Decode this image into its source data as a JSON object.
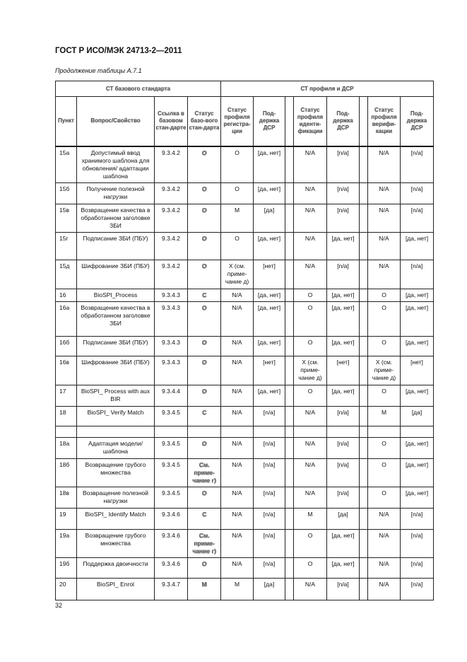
{
  "document": {
    "title": "ГОСТ Р ИСО/МЭК 24713-2—2011",
    "caption": "Продолжение таблицы А.7.1",
    "page_number": "32"
  },
  "table": {
    "group_headers": [
      "СТ базового стандарта",
      "СТ профиля и ДСР"
    ],
    "headers": [
      "Пункт",
      "Вопрос/Свойство",
      "Ссылка в базовом стан-дарте",
      "Статус базо-вого стан-дарта",
      "Статус профиля регистра-ции",
      "Под-держка ДСР",
      "Статус профиля иденти-фикации",
      "Под-держка ДСР",
      "Статус профиля верифи-кации",
      "Под-держка ДСР"
    ],
    "rows": [
      [
        "15а",
        "Допустимый ввод хранимого шаблона для обновления/ адаптации шаблона",
        "9.3.4.2",
        "О",
        "О",
        "[да, нет]",
        "N/A",
        "[n/a]",
        "N/A",
        "[n/a]"
      ],
      [
        "15б",
        "Получение полезной нагрузки",
        "9.3.4.2",
        "О",
        "О",
        "[да, нет]",
        "N/A",
        "[n/a]",
        "N/A",
        "[n/a]"
      ],
      [
        "15в",
        "Возвращение качества в обработанном заголовке ЗБИ",
        "9.3.4.2",
        "О",
        "М",
        "[да]",
        "N/A",
        "[n/a]",
        "N/A",
        "[n/a]"
      ],
      [
        "15г",
        "Подписание ЗБИ (ПБУ)",
        "9.3.4.2",
        "О",
        "О",
        "[да, нет]",
        "N/A",
        "[да, нет]",
        "N/A",
        "[да, нет]"
      ],
      [
        "15д",
        "Шифрование ЗБИ (ПБУ)",
        "9.3.4.2",
        "О",
        "X (см. приме-чание д)",
        "[нет]",
        "N/A",
        "[n/a]",
        "N/A",
        "[n/a]"
      ],
      [
        "16",
        "BioSPI_Process",
        "9.3.4.3",
        "С",
        "N/A",
        "[да, нет]",
        "О",
        "[да, нет]",
        "О",
        "[да, нет]"
      ],
      [
        "16а",
        "Возвращение качества в обработанном заголовке ЗБИ",
        "9.3.4.3",
        "О",
        "N/A",
        "[да, нет]",
        "О",
        "[да, нет]",
        "О",
        "[да, нет]"
      ],
      [
        "16б",
        "Подписание ЗБИ (ПБУ)",
        "9.3.4.3",
        "О",
        "N/A",
        "[да, нет]",
        "О",
        "[да, нет]",
        "О",
        "[да, нет]"
      ],
      [
        "16в",
        "Шифрование ЗБИ (ПБУ)",
        "9.3.4.3",
        "О",
        "N/A",
        "[нет]",
        "X (см. приме-чание д)",
        "[нет]",
        "X (см. приме-чание д)",
        "[нет]"
      ],
      [
        "17",
        "BioSPI_ Process with aux BIR",
        "9.3.4.4",
        "О",
        "N/A",
        "[да, нет]",
        "О",
        "[да, нет]",
        "О",
        "[да, нет]"
      ],
      [
        "18",
        "BioSPI_ Verify Match",
        "9.3.4.5",
        "С",
        "N/A",
        "[n/a]",
        "N/A",
        "[n/a]",
        "М",
        "[да]"
      ],
      [
        "",
        "",
        "",
        "",
        "",
        "",
        "",
        "",
        "",
        ""
      ],
      [
        "18а",
        "Адаптация модели/шаблона",
        "9.3.4.5",
        "О",
        "N/A",
        "[n/a]",
        "N/A",
        "[n/a]",
        "О",
        "[да, нет]"
      ],
      [
        "18б",
        "Возвращение грубого множества",
        "9.3.4.5",
        "См. приме-чание г)",
        "N/A",
        "[n/a]",
        "N/A",
        "[n/a]",
        "О",
        "[да, нет]"
      ],
      [
        "18в",
        "Возвращение полезной нагрузки",
        "9.3.4.5",
        "О",
        "N/A",
        "[n/a]",
        "N/A",
        "[n/a]",
        "О",
        "[да, нет]"
      ],
      [
        "19",
        "BioSPI_ Identify Match",
        "9.3.4.6",
        "С",
        "N/A",
        "[n/a]",
        "М",
        "[да]",
        "N/A",
        "[n/a]"
      ],
      [
        "19а",
        "Возвращение грубого множества",
        "9.3.4.6",
        "См. приме-чание г)",
        "N/A",
        "[n/a]",
        "О",
        "[да, нет]",
        "N/A",
        "[n/a]"
      ],
      [
        "19б",
        "Поддержка двоичности",
        "9.3.4.6",
        "О",
        "N/A",
        "[n/a]",
        "О",
        "[да, нет]",
        "N/A",
        "[n/a]"
      ],
      [
        "20",
        "BioSPI_ Enrol",
        "9.3.4.7",
        "М",
        "М",
        "[да]",
        "N/A",
        "[n/a]",
        "N/A",
        "[n/a]"
      ]
    ]
  }
}
